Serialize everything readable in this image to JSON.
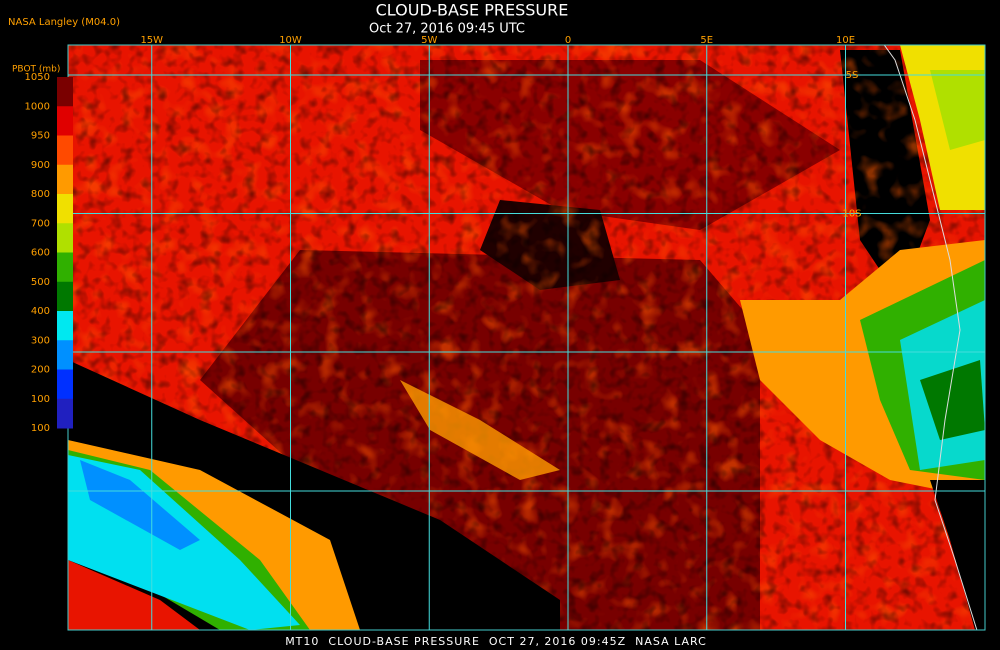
{
  "header": {
    "title": "CLOUD-BASE PRESSURE",
    "subtitle": "Oct 27, 2016 09:45 UTC",
    "source": "NASA Langley (M04.0)"
  },
  "legend": {
    "title": "PBOT (mb)",
    "ticks": [
      1050,
      1000,
      950,
      900,
      800,
      700,
      600,
      500,
      400,
      300,
      200,
      100
    ],
    "colors": [
      "#7a0000",
      "#e00000",
      "#ff4a00",
      "#ff9a00",
      "#f0e000",
      "#b0e000",
      "#30b000",
      "#007800",
      "#00e8f0",
      "#0090ff",
      "#0030ff",
      "#2020c0"
    ],
    "extra_tick": 100
  },
  "grid": {
    "lon": [
      {
        "value": -15,
        "label": "15W"
      },
      {
        "value": -10,
        "label": "10W"
      },
      {
        "value": -5,
        "label": "5W"
      },
      {
        "value": 0,
        "label": "0"
      },
      {
        "value": 5,
        "label": "5E"
      },
      {
        "value": 10,
        "label": "10E"
      }
    ],
    "lat": [
      {
        "value": -5,
        "label": "5S"
      },
      {
        "value": -10,
        "label": "10S"
      }
    ]
  },
  "footer": "MT10  CLOUD-BASE PRESSURE  OCT 27, 2016 09:45Z  NASA LARC"
}
